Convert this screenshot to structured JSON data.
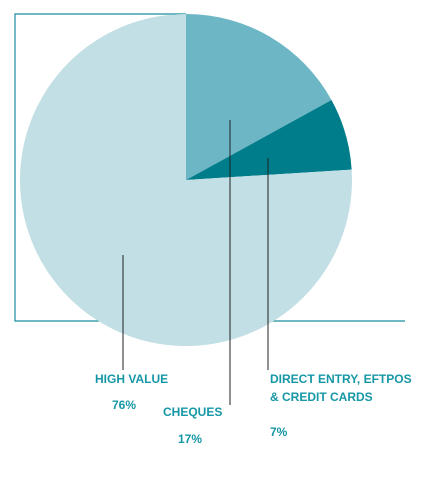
{
  "chart_data": {
    "type": "pie",
    "categories": [
      "CHEQUES",
      [
        "DIRECT ENTRY, EFTPOS",
        "& CREDIT CARDS"
      ],
      "HIGH VALUE"
    ],
    "values": [
      17,
      7,
      76
    ],
    "value_labels": [
      "17%",
      "7%",
      "76%"
    ],
    "colors": [
      "#6db6c6",
      "#007d8a",
      "#c2dfe5"
    ]
  }
}
